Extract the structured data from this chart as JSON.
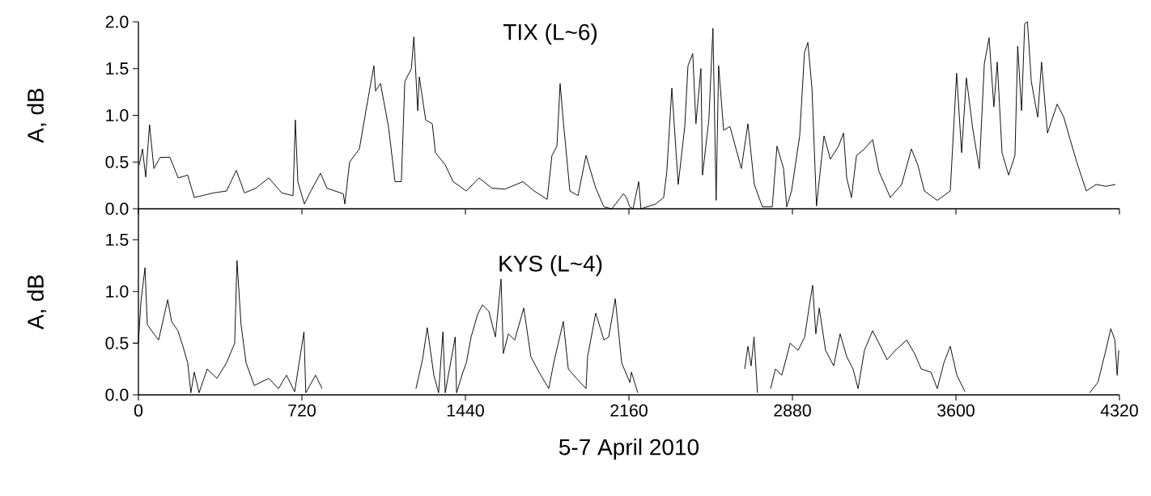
{
  "chart_data": [
    {
      "type": "line",
      "title": "TIX (L~6)",
      "ylabel": "A, dB",
      "color": "#000000",
      "xlim": [
        0,
        4320
      ],
      "xticks": [
        0,
        720,
        1440,
        2160,
        2880,
        3600,
        4320
      ],
      "ylim": [
        0,
        2
      ],
      "yticks": [
        {
          "value": 0,
          "label": "0.0"
        },
        {
          "value": 0.5,
          "label": "0.5"
        },
        {
          "value": 1,
          "label": "1.0"
        },
        {
          "value": 1.5,
          "label": "1.5"
        },
        {
          "value": 2,
          "label": "2.0"
        }
      ],
      "tick_labels": "y",
      "x": [
        4,
        18,
        32,
        49,
        68,
        96,
        139,
        175,
        217,
        246,
        331,
        388,
        431,
        467,
        517,
        574,
        631,
        681,
        691,
        702,
        731,
        759,
        802,
        830,
        902,
        909,
        930,
        973,
        1002,
        1037,
        1044,
        1066,
        1101,
        1130,
        1158,
        1173,
        1202,
        1213,
        1230,
        1237,
        1265,
        1294,
        1308,
        1351,
        1386,
        1444,
        1500,
        1557,
        1614,
        1693,
        1743,
        1800,
        1821,
        1843,
        1857,
        1872,
        1900,
        1936,
        1971,
        2014,
        2050,
        2085,
        2136,
        2149,
        2164,
        2178,
        2203,
        2213,
        2277,
        2313,
        2327,
        2349,
        2377,
        2406,
        2420,
        2441,
        2455,
        2477,
        2484,
        2512,
        2530,
        2544,
        2555,
        2577,
        2605,
        2655,
        2684,
        2712,
        2748,
        2791,
        2812,
        2841,
        2855,
        2876,
        2912,
        2933,
        2948,
        2966,
        2986,
        3019,
        3047,
        3083,
        3105,
        3119,
        3140,
        3162,
        3197,
        3233,
        3261,
        3311,
        3361,
        3404,
        3432,
        3461,
        3518,
        3575,
        3603,
        3625,
        3646,
        3675,
        3703,
        3725,
        3746,
        3767,
        3782,
        3803,
        3832,
        3860,
        3872,
        3889,
        3903,
        3915,
        3932,
        3960,
        3977,
        4003,
        4046,
        4075,
        4103,
        4132,
        4174,
        4217,
        4260,
        4303
      ],
      "values": [
        0.47,
        0.64,
        0.34,
        0.9,
        0.43,
        0.55,
        0.55,
        0.33,
        0.36,
        0.12,
        0.17,
        0.19,
        0.41,
        0.17,
        0.22,
        0.33,
        0.17,
        0.14,
        0.95,
        0.29,
        0.05,
        0.19,
        0.38,
        0.22,
        0.16,
        0.05,
        0.5,
        0.64,
        1.05,
        1.53,
        1.26,
        1.34,
        0.88,
        0.29,
        0.29,
        1.36,
        1.5,
        1.84,
        1.05,
        1.41,
        0.95,
        0.91,
        0.6,
        0.47,
        0.29,
        0.19,
        0.33,
        0.22,
        0.21,
        0.29,
        0.19,
        0.1,
        0.57,
        0.67,
        1.34,
        0.91,
        0.19,
        0.14,
        0.57,
        0.22,
        0.02,
        0.0,
        0.16,
        0.12,
        0.02,
        0.0,
        0.29,
        0.0,
        0.05,
        0.12,
        0.4,
        1.29,
        0.26,
        0.88,
        1.53,
        1.66,
        0.91,
        1.5,
        0.36,
        0.95,
        1.93,
        0.09,
        1.53,
        0.84,
        0.88,
        0.43,
        0.91,
        0.26,
        0.02,
        0.02,
        0.67,
        0.43,
        0.02,
        0.19,
        0.78,
        1.67,
        1.78,
        1.29,
        0.03,
        0.78,
        0.53,
        0.67,
        0.81,
        0.33,
        0.12,
        0.57,
        0.64,
        0.74,
        0.4,
        0.12,
        0.26,
        0.64,
        0.47,
        0.19,
        0.09,
        0.19,
        1.45,
        0.6,
        1.4,
        0.84,
        0.43,
        1.55,
        1.83,
        1.09,
        1.57,
        0.6,
        0.36,
        0.57,
        1.74,
        1.05,
        1.98,
        2.0,
        1.36,
        0.98,
        1.57,
        0.81,
        1.12,
        0.98,
        0.74,
        0.5,
        0.19,
        0.26,
        0.24,
        0.26
      ]
    },
    {
      "type": "line",
      "title": "KYS (L~4)",
      "ylabel": "A, dB",
      "xlabel": "5-7 April 2010",
      "color": "#000000",
      "xlim": [
        0,
        4320
      ],
      "xticks": [
        0,
        720,
        1440,
        2160,
        2880,
        3600,
        4320
      ],
      "ylim": [
        0,
        1.8
      ],
      "yticks": [
        {
          "value": 0,
          "label": "0.0"
        },
        {
          "value": 0.5,
          "label": "0.5"
        },
        {
          "value": 1,
          "label": "1.0"
        },
        {
          "value": 1.5,
          "label": "1.5"
        }
      ],
      "x": [
        0,
        11,
        29,
        39,
        68,
        89,
        129,
        146,
        174,
        196,
        217,
        231,
        246,
        267,
        303,
        346,
        388,
        424,
        434,
        452,
        474,
        510,
        574,
        617,
        652,
        688,
        729,
        737,
        780,
        809,
        1000,
        1222,
        1251,
        1272,
        1301,
        1322,
        1341,
        1351,
        1395,
        1401,
        1429,
        1444,
        1465,
        1494,
        1515,
        1543,
        1572,
        1597,
        1607,
        1629,
        1657,
        1697,
        1728,
        1764,
        1807,
        1829,
        1871,
        1893,
        1929,
        1971,
        1978,
        2014,
        2050,
        2071,
        2100,
        2128,
        2164,
        2171,
        2199,
        2400,
        2670,
        2684,
        2698,
        2711,
        2726,
        2750,
        2784,
        2805,
        2833,
        2855,
        2870,
        2905,
        2934,
        2955,
        2969,
        2983,
        2998,
        3026,
        3062,
        3090,
        3119,
        3147,
        3169,
        3197,
        3233,
        3261,
        3297,
        3333,
        3383,
        3418,
        3447,
        3490,
        3518,
        3547,
        3575,
        3604,
        3640,
        3900,
        4189,
        4225,
        4260,
        4282,
        4300,
        4310,
        4317
      ],
      "values": [
        0.5,
        0.9,
        1.23,
        0.68,
        0.59,
        0.53,
        0.92,
        0.71,
        0.62,
        0.47,
        0.31,
        0.02,
        0.22,
        0.02,
        0.25,
        0.16,
        0.31,
        0.5,
        1.3,
        0.68,
        0.31,
        0.09,
        0.16,
        0.06,
        0.19,
        0.03,
        0.61,
        0.02,
        0.19,
        0.06,
        null,
        0.06,
        0.34,
        0.65,
        0.19,
        0.02,
        0.61,
        0.02,
        0.56,
        0.02,
        0.22,
        0.31,
        0.56,
        0.78,
        0.87,
        0.81,
        0.56,
        1.12,
        0.4,
        0.59,
        0.53,
        0.84,
        0.37,
        0.22,
        0.06,
        0.31,
        0.71,
        0.25,
        0.16,
        0.06,
        0.37,
        0.79,
        0.53,
        0.56,
        0.93,
        0.31,
        0.12,
        0.22,
        0.02,
        null,
        0.25,
        0.47,
        0.28,
        0.56,
        0.02,
        null,
        0.06,
        0.25,
        0.19,
        0.37,
        0.5,
        0.43,
        0.56,
        0.87,
        1.06,
        0.59,
        0.84,
        0.43,
        0.28,
        0.59,
        0.37,
        0.25,
        0.06,
        0.43,
        0.62,
        0.5,
        0.34,
        0.43,
        0.53,
        0.4,
        0.25,
        0.22,
        0.06,
        0.31,
        0.47,
        0.19,
        0.03,
        null,
        0.02,
        0.12,
        0.43,
        0.64,
        0.53,
        0.19,
        0.43
      ]
    }
  ]
}
